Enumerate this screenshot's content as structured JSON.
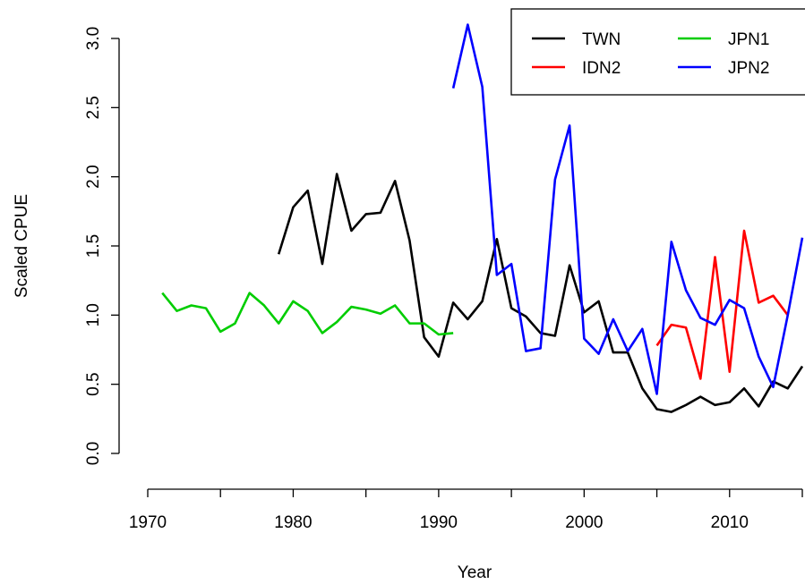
{
  "chart_data": {
    "type": "line",
    "xlabel": "Year",
    "ylabel": "Scaled CPUE",
    "x": [
      1971,
      1972,
      1973,
      1974,
      1975,
      1976,
      1977,
      1978,
      1979,
      1980,
      1981,
      1982,
      1983,
      1984,
      1985,
      1986,
      1987,
      1988,
      1989,
      1990,
      1991,
      1992,
      1993,
      1994,
      1995,
      1996,
      1997,
      1998,
      1999,
      2000,
      2001,
      2002,
      2003,
      2004,
      2005,
      2006,
      2007,
      2008,
      2009,
      2010,
      2011,
      2012,
      2013,
      2014,
      2015
    ],
    "series": [
      {
        "name": "TWN",
        "color": "#000000",
        "values": [
          null,
          null,
          null,
          null,
          null,
          null,
          null,
          null,
          1.44,
          1.78,
          1.9,
          1.37,
          2.02,
          1.61,
          1.73,
          1.74,
          1.97,
          1.54,
          0.84,
          0.7,
          1.09,
          0.97,
          1.1,
          1.55,
          1.05,
          0.99,
          0.87,
          0.85,
          1.36,
          1.02,
          1.1,
          0.73,
          0.73,
          0.47,
          0.32,
          0.3,
          0.35,
          0.41,
          0.35,
          0.37,
          0.47,
          0.34,
          0.52,
          0.47,
          0.63
        ]
      },
      {
        "name": "IDN2",
        "color": "#ff0000",
        "values": [
          null,
          null,
          null,
          null,
          null,
          null,
          null,
          null,
          null,
          null,
          null,
          null,
          null,
          null,
          null,
          null,
          null,
          null,
          null,
          null,
          null,
          null,
          null,
          null,
          null,
          null,
          null,
          null,
          null,
          null,
          null,
          null,
          null,
          null,
          0.78,
          0.93,
          0.91,
          0.54,
          1.42,
          0.59,
          1.61,
          1.09,
          1.14,
          1.0,
          null
        ]
      },
      {
        "name": "JPN1",
        "color": "#00cd00",
        "values": [
          1.16,
          1.03,
          1.07,
          1.05,
          0.88,
          0.94,
          1.16,
          1.07,
          0.94,
          1.1,
          1.03,
          0.87,
          0.95,
          1.06,
          1.04,
          1.01,
          1.07,
          0.94,
          0.94,
          0.86,
          0.87,
          null,
          null,
          null,
          null,
          null,
          null,
          null,
          null,
          null,
          null,
          null,
          null,
          null,
          null,
          null,
          null,
          null,
          null,
          null,
          null,
          null,
          null,
          null,
          null
        ]
      },
      {
        "name": "JPN2",
        "color": "#0000ff",
        "values": [
          null,
          null,
          null,
          null,
          null,
          null,
          null,
          null,
          null,
          null,
          null,
          null,
          null,
          null,
          null,
          null,
          null,
          null,
          null,
          null,
          2.64,
          3.1,
          2.65,
          1.29,
          1.37,
          0.74,
          0.76,
          1.98,
          2.37,
          0.83,
          0.72,
          0.97,
          0.74,
          0.9,
          0.43,
          1.53,
          1.18,
          0.98,
          0.93,
          1.11,
          1.05,
          0.7,
          0.48,
          1.0,
          1.56
        ]
      }
    ],
    "xlim": [
      1970,
      2015
    ],
    "xticks": [
      1970,
      1980,
      1990,
      2000,
      2010
    ],
    "xminor_ticks": [
      1975,
      1985,
      1995,
      2005,
      2015
    ],
    "ylim": [
      0,
      3
    ],
    "yticks": [
      {
        "value": 0,
        "label": "0.0"
      },
      0.5,
      {
        "value": 1,
        "label": "1.0"
      },
      1.5,
      {
        "value": 2,
        "label": "2.0"
      },
      2.5,
      {
        "value": 3,
        "label": "3.0"
      }
    ],
    "legend": "topright",
    "grid": false
  }
}
